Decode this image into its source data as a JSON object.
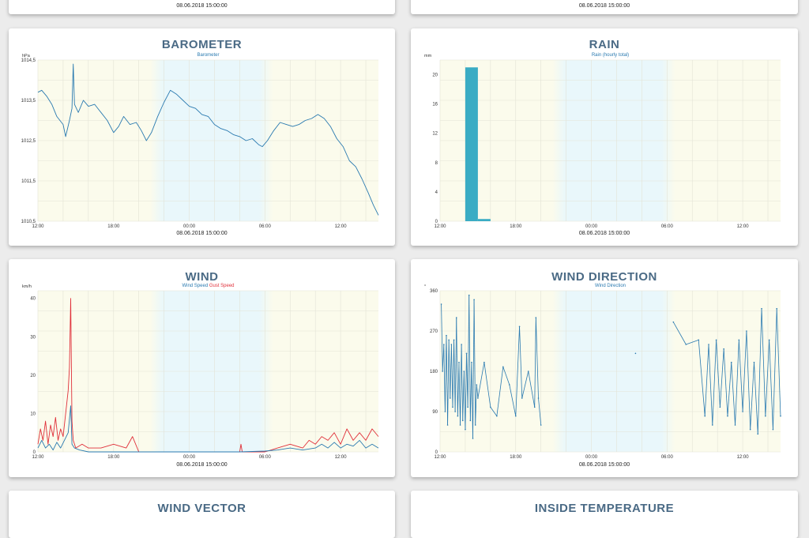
{
  "top_cards": [
    {
      "timestamp": "08.06.2018 15:00:00"
    },
    {
      "timestamp": "08.06.2018 15:00:00"
    }
  ],
  "cards": [
    {
      "id": "barometer",
      "title": "BAROMETER",
      "timestamp": "08.06.2018 15:00:00"
    },
    {
      "id": "rain",
      "title": "RAIN",
      "timestamp": "08.06.2018 15:00:00"
    },
    {
      "id": "wind",
      "title": "WIND",
      "timestamp": "08.06.2018 15:00:00"
    },
    {
      "id": "winddir",
      "title": "WIND DIRECTION",
      "timestamp": "08.06.2018 15:00:00"
    },
    {
      "id": "windvector",
      "title": "WIND VECTOR"
    },
    {
      "id": "insidetemp",
      "title": "INSIDE TEMPERATURE"
    }
  ],
  "colors": {
    "title": "#4a6a85",
    "series_blue": "#2a7ab0",
    "series_red": "#e0303a",
    "bar": "#3aacc4",
    "day_band": "#fbfbec",
    "night_band": "#e9f7fb"
  },
  "chart_data": [
    {
      "id": "barometer",
      "type": "line",
      "title": "Barometer",
      "ylabel": "hPa",
      "ylim": [
        1010.5,
        1014.5
      ],
      "yticks": [
        "1014,5",
        "1013,5",
        "1012,5",
        "1011,5",
        "1010,5"
      ],
      "xticks": [
        "12:00",
        "18:00",
        "00:00",
        "06:00",
        "12:00"
      ],
      "x_hours_offset": [
        0,
        6,
        12,
        18,
        24
      ],
      "xlim_hours": [
        0,
        27
      ],
      "series": [
        {
          "name": "Barometer",
          "color": "#2a7ab0",
          "points": [
            [
              0,
              1013.7
            ],
            [
              0.3,
              1013.75
            ],
            [
              0.7,
              1013.6
            ],
            [
              1.1,
              1013.4
            ],
            [
              1.5,
              1013.1
            ],
            [
              2.0,
              1012.9
            ],
            [
              2.2,
              1012.6
            ],
            [
              2.5,
              1013.0
            ],
            [
              2.7,
              1013.3
            ],
            [
              2.8,
              1014.4
            ],
            [
              2.9,
              1013.4
            ],
            [
              3.2,
              1013.2
            ],
            [
              3.6,
              1013.5
            ],
            [
              4.0,
              1013.35
            ],
            [
              4.5,
              1013.4
            ],
            [
              5.0,
              1013.2
            ],
            [
              5.5,
              1013.0
            ],
            [
              6.0,
              1012.7
            ],
            [
              6.4,
              1012.85
            ],
            [
              6.8,
              1013.1
            ],
            [
              7.3,
              1012.9
            ],
            [
              7.8,
              1012.95
            ],
            [
              8.2,
              1012.75
            ],
            [
              8.6,
              1012.5
            ],
            [
              9.0,
              1012.7
            ],
            [
              9.5,
              1013.1
            ],
            [
              10.0,
              1013.45
            ],
            [
              10.5,
              1013.75
            ],
            [
              11.0,
              1013.65
            ],
            [
              11.5,
              1013.5
            ],
            [
              12.0,
              1013.35
            ],
            [
              12.5,
              1013.3
            ],
            [
              13.0,
              1013.15
            ],
            [
              13.5,
              1013.1
            ],
            [
              14.0,
              1012.9
            ],
            [
              14.5,
              1012.8
            ],
            [
              15.0,
              1012.75
            ],
            [
              15.5,
              1012.65
            ],
            [
              16.0,
              1012.6
            ],
            [
              16.5,
              1012.5
            ],
            [
              17.0,
              1012.55
            ],
            [
              17.5,
              1012.4
            ],
            [
              17.8,
              1012.35
            ],
            [
              18.2,
              1012.5
            ],
            [
              18.7,
              1012.75
            ],
            [
              19.2,
              1012.95
            ],
            [
              19.7,
              1012.9
            ],
            [
              20.2,
              1012.85
            ],
            [
              20.7,
              1012.9
            ],
            [
              21.2,
              1013.0
            ],
            [
              21.7,
              1013.05
            ],
            [
              22.2,
              1013.15
            ],
            [
              22.7,
              1013.05
            ],
            [
              23.2,
              1012.85
            ],
            [
              23.7,
              1012.55
            ],
            [
              24.2,
              1012.35
            ],
            [
              24.7,
              1012.0
            ],
            [
              25.2,
              1011.85
            ],
            [
              25.7,
              1011.55
            ],
            [
              26.2,
              1011.2
            ],
            [
              26.6,
              1010.9
            ],
            [
              27.0,
              1010.65
            ]
          ]
        }
      ]
    },
    {
      "id": "rain",
      "type": "bar",
      "title": "Rain (hourly total)",
      "ylabel": "mm",
      "ylim": [
        0,
        22
      ],
      "yticks": [
        "20",
        "16",
        "12",
        "8",
        "4",
        "0"
      ],
      "ytick_values": [
        20,
        16,
        12,
        8,
        4,
        0
      ],
      "xticks": [
        "12:00",
        "18:00",
        "00:00",
        "06:00",
        "12:00"
      ],
      "x_hours_offset": [
        0,
        6,
        12,
        18,
        24
      ],
      "xlim_hours": [
        0,
        27
      ],
      "series": [
        {
          "name": "Rain (hourly total)",
          "color": "#3aacc4",
          "bars": [
            [
              2,
              21
            ],
            [
              3,
              0.3
            ]
          ]
        }
      ]
    },
    {
      "id": "wind",
      "type": "line",
      "title": "Wind Speed Gust Speed",
      "ylabel": "km/h",
      "ylim": [
        0,
        42
      ],
      "yticks": [
        "40",
        "30",
        "20",
        "10",
        "0"
      ],
      "ytick_values": [
        40,
        30,
        20,
        10,
        0
      ],
      "xticks": [
        "12:00",
        "18:00",
        "00:00",
        "06:00",
        "12:00"
      ],
      "x_hours_offset": [
        0,
        6,
        12,
        18,
        24
      ],
      "xlim_hours": [
        0,
        27
      ],
      "series": [
        {
          "name": "Wind Speed",
          "color": "#2a7ab0",
          "points": [
            [
              0,
              1
            ],
            [
              0.3,
              3
            ],
            [
              0.6,
              1
            ],
            [
              0.9,
              2
            ],
            [
              1.2,
              0.5
            ],
            [
              1.5,
              2.5
            ],
            [
              1.8,
              1
            ],
            [
              2.1,
              3
            ],
            [
              2.4,
              5
            ],
            [
              2.6,
              12
            ],
            [
              2.7,
              2
            ],
            [
              2.9,
              1
            ],
            [
              3.3,
              0.5
            ],
            [
              4,
              0
            ],
            [
              5,
              0
            ],
            [
              6,
              0
            ],
            [
              7,
              0
            ],
            [
              8,
              0
            ],
            [
              10,
              0
            ],
            [
              12,
              0
            ],
            [
              14,
              0
            ],
            [
              16,
              0
            ],
            [
              18,
              0.2
            ],
            [
              19,
              0.5
            ],
            [
              20,
              1
            ],
            [
              21,
              0.5
            ],
            [
              22,
              1
            ],
            [
              22.5,
              2
            ],
            [
              23,
              1
            ],
            [
              23.5,
              2.5
            ],
            [
              24,
              1
            ],
            [
              24.5,
              2
            ],
            [
              25,
              1.5
            ],
            [
              25.5,
              3
            ],
            [
              26,
              1
            ],
            [
              26.5,
              2
            ],
            [
              27,
              1
            ]
          ]
        },
        {
          "name": "Gust Speed",
          "color": "#e0303a",
          "points": [
            [
              0,
              2
            ],
            [
              0.2,
              6
            ],
            [
              0.4,
              3
            ],
            [
              0.6,
              8
            ],
            [
              0.8,
              2
            ],
            [
              1.0,
              7
            ],
            [
              1.2,
              4
            ],
            [
              1.4,
              9
            ],
            [
              1.6,
              3
            ],
            [
              1.8,
              6
            ],
            [
              2.0,
              4
            ],
            [
              2.2,
              10
            ],
            [
              2.4,
              16
            ],
            [
              2.5,
              22
            ],
            [
              2.6,
              40
            ],
            [
              2.7,
              8
            ],
            [
              2.8,
              3
            ],
            [
              3.0,
              1
            ],
            [
              3.5,
              2
            ],
            [
              4,
              1
            ],
            [
              5,
              1
            ],
            [
              6,
              2
            ],
            [
              7,
              1
            ],
            [
              7.5,
              4
            ],
            [
              8,
              0
            ],
            [
              10,
              0
            ],
            [
              12,
              0
            ],
            [
              14,
              0
            ],
            [
              16,
              0
            ],
            [
              16.1,
              2
            ],
            [
              16.2,
              0
            ],
            [
              18,
              0
            ],
            [
              19,
              1
            ],
            [
              20,
              2
            ],
            [
              21,
              1
            ],
            [
              21.5,
              3
            ],
            [
              22,
              2
            ],
            [
              22.5,
              4
            ],
            [
              23,
              3
            ],
            [
              23.5,
              5
            ],
            [
              24,
              2
            ],
            [
              24.5,
              6
            ],
            [
              25,
              3
            ],
            [
              25.5,
              5
            ],
            [
              26,
              3
            ],
            [
              26.5,
              6
            ],
            [
              27,
              4
            ]
          ]
        }
      ]
    },
    {
      "id": "winddir",
      "type": "scatter",
      "title": "Wind Direction",
      "ylabel": "°",
      "ylim": [
        0,
        360
      ],
      "yticks": [
        "360",
        "270",
        "180",
        "90",
        "0"
      ],
      "ytick_values": [
        360,
        270,
        180,
        90,
        0
      ],
      "xticks": [
        "12:00",
        "18:00",
        "00:00",
        "06:00",
        "12:00"
      ],
      "x_hours_offset": [
        0,
        6,
        12,
        18,
        24
      ],
      "xlim_hours": [
        0,
        27
      ],
      "series": [
        {
          "name": "Wind Direction",
          "color": "#2a7ab0",
          "points": [
            [
              0.1,
              330
            ],
            [
              0.2,
              180
            ],
            [
              0.3,
              240
            ],
            [
              0.4,
              90
            ],
            [
              0.5,
              260
            ],
            [
              0.6,
              60
            ],
            [
              0.7,
              250
            ],
            [
              0.8,
              120
            ],
            [
              0.9,
              240
            ],
            [
              1.0,
              100
            ],
            [
              1.1,
              250
            ],
            [
              1.2,
              90
            ],
            [
              1.3,
              300
            ],
            [
              1.4,
              80
            ],
            [
              1.5,
              200
            ],
            [
              1.6,
              60
            ],
            [
              1.7,
              240
            ],
            [
              1.8,
              70
            ],
            [
              1.9,
              180
            ],
            [
              2.0,
              50
            ],
            [
              2.1,
              220
            ],
            [
              2.2,
              100
            ],
            [
              2.3,
              350
            ],
            [
              2.4,
              70
            ],
            [
              2.5,
              200
            ],
            [
              2.6,
              30
            ],
            [
              2.7,
              340
            ],
            [
              2.8,
              60
            ],
            [
              2.9,
              150
            ],
            [
              3.0,
              120
            ],
            [
              3.5,
              200
            ],
            [
              4.0,
              100
            ],
            [
              4.5,
              80
            ],
            [
              5.0,
              190
            ],
            [
              5.5,
              150
            ],
            [
              6.0,
              80
            ],
            [
              6.3,
              280
            ],
            [
              6.5,
              120
            ],
            [
              7.0,
              180
            ],
            [
              7.5,
              100
            ],
            [
              7.6,
              300
            ],
            [
              7.8,
              120
            ],
            [
              8.0,
              60
            ],
            [
              15.5,
              220
            ],
            [
              18.5,
              290
            ],
            [
              19.5,
              240
            ],
            [
              20.5,
              250
            ],
            [
              21.0,
              80
            ],
            [
              21.3,
              240
            ],
            [
              21.6,
              60
            ],
            [
              21.9,
              250
            ],
            [
              22.2,
              100
            ],
            [
              22.5,
              230
            ],
            [
              22.8,
              80
            ],
            [
              23.1,
              200
            ],
            [
              23.4,
              60
            ],
            [
              23.7,
              250
            ],
            [
              24.0,
              90
            ],
            [
              24.3,
              270
            ],
            [
              24.6,
              50
            ],
            [
              24.9,
              200
            ],
            [
              25.2,
              40
            ],
            [
              25.5,
              320
            ],
            [
              25.8,
              80
            ],
            [
              26.1,
              250
            ],
            [
              26.4,
              50
            ],
            [
              26.7,
              320
            ],
            [
              27.0,
              80
            ]
          ]
        }
      ]
    }
  ]
}
